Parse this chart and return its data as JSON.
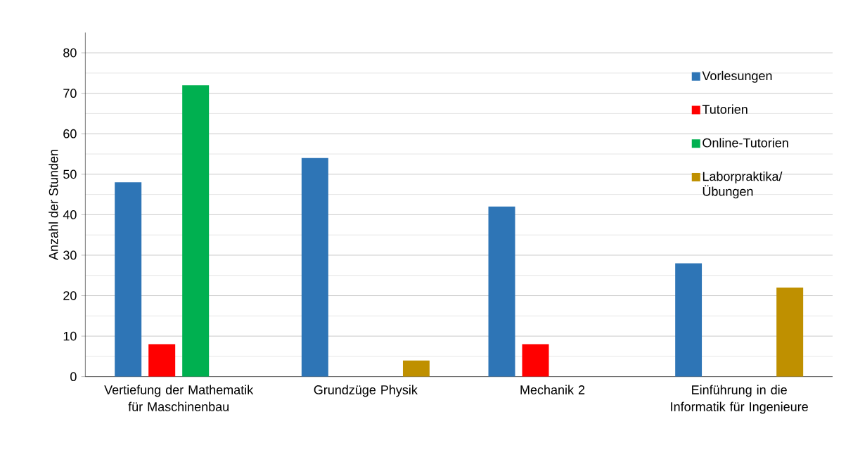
{
  "chart_data": {
    "type": "bar",
    "ylabel": "Anzahl der Stunden",
    "categories": [
      "Vertiefung der Mathematik für Maschinenbau",
      "Grundzüge Physik",
      "Mechanik 2",
      "Einführung in die Informatik für Ingenieure"
    ],
    "series": [
      {
        "name": "Vorlesungen",
        "color": "#2e75b6",
        "values": [
          48,
          54,
          42,
          28
        ]
      },
      {
        "name": "Tutorien",
        "color": "#ff0000",
        "values": [
          8,
          null,
          8,
          null
        ]
      },
      {
        "name": "Online-Tutorien",
        "color": "#00b050",
        "values": [
          72,
          null,
          null,
          null
        ]
      },
      {
        "name": "Laborpraktika/ Übungen",
        "color": "#bf9000",
        "values": [
          null,
          4,
          null,
          22
        ]
      }
    ],
    "ylim": [
      0,
      85
    ],
    "yticks": [
      0,
      10,
      20,
      30,
      40,
      50,
      60,
      70,
      80
    ],
    "grid": "y",
    "legend": "right"
  }
}
